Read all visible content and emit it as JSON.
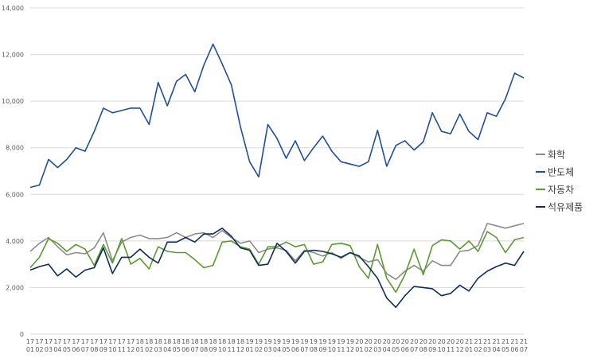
{
  "chart_data": {
    "type": "line",
    "title": "",
    "xlabel": "",
    "ylabel": "",
    "ylim": [
      0,
      14000
    ],
    "yticks": [
      0,
      2000,
      4000,
      6000,
      8000,
      10000,
      12000,
      14000
    ],
    "ytick_labels": [
      "0",
      "2,000",
      "4,000",
      "6,000",
      "8,000",
      "10,000",
      "12,000",
      "14,000"
    ],
    "grid": "horizontal",
    "legend_position": "right",
    "categories": [
      [
        "17",
        "01"
      ],
      [
        "17",
        "02"
      ],
      [
        "17",
        "03"
      ],
      [
        "17",
        "04"
      ],
      [
        "17",
        "05"
      ],
      [
        "17",
        "06"
      ],
      [
        "17",
        "07"
      ],
      [
        "17",
        "08"
      ],
      [
        "17",
        "09"
      ],
      [
        "17",
        "10"
      ],
      [
        "17",
        "11"
      ],
      [
        "17",
        "12"
      ],
      [
        "18",
        "01"
      ],
      [
        "18",
        "02"
      ],
      [
        "18",
        "03"
      ],
      [
        "18",
        "04"
      ],
      [
        "18",
        "05"
      ],
      [
        "18",
        "06"
      ],
      [
        "18",
        "07"
      ],
      [
        "18",
        "08"
      ],
      [
        "18",
        "09"
      ],
      [
        "18",
        "10"
      ],
      [
        "18",
        "11"
      ],
      [
        "18",
        "12"
      ],
      [
        "19",
        "01"
      ],
      [
        "19",
        "02"
      ],
      [
        "19",
        "03"
      ],
      [
        "19",
        "04"
      ],
      [
        "19",
        "05"
      ],
      [
        "19",
        "06"
      ],
      [
        "19",
        "07"
      ],
      [
        "19",
        "08"
      ],
      [
        "19",
        "09"
      ],
      [
        "19",
        "10"
      ],
      [
        "19",
        "11"
      ],
      [
        "19",
        "12"
      ],
      [
        "20",
        "01"
      ],
      [
        "20",
        "02"
      ],
      [
        "20",
        "03"
      ],
      [
        "20",
        "04"
      ],
      [
        "20",
        "05"
      ],
      [
        "20",
        "06"
      ],
      [
        "20",
        "07"
      ],
      [
        "20",
        "08"
      ],
      [
        "20",
        "09"
      ],
      [
        "20",
        "10"
      ],
      [
        "20",
        "11"
      ],
      [
        "20",
        "12"
      ],
      [
        "21",
        "01"
      ],
      [
        "21",
        "02"
      ],
      [
        "21",
        "03"
      ],
      [
        "21",
        "04"
      ],
      [
        "21",
        "05"
      ],
      [
        "21",
        "06"
      ],
      [
        "21",
        "07"
      ]
    ],
    "series": [
      {
        "name": "화학",
        "color": "#8c8c8c",
        "values": [
          3550,
          3900,
          4150,
          3750,
          3400,
          3500,
          3450,
          3700,
          4350,
          3150,
          3950,
          4150,
          4250,
          4100,
          4100,
          4150,
          4350,
          4150,
          4300,
          4350,
          4150,
          4450,
          4150,
          3900,
          4000,
          3500,
          3650,
          3700,
          3600,
          3150,
          3600,
          3500,
          3350,
          3500,
          3250,
          3500,
          3300,
          3100,
          3200,
          2600,
          2350,
          2700,
          2950,
          2700,
          3150,
          2950,
          2950,
          3550,
          3600,
          3800,
          4750,
          4650,
          4550,
          4650,
          4750
        ]
      },
      {
        "name": "반도체",
        "color": "#1f4e9c",
        "values": [
          6300,
          6400,
          7500,
          7150,
          7500,
          8000,
          7850,
          8700,
          9700,
          9500,
          9600,
          9700,
          9700,
          9000,
          10800,
          9800,
          10850,
          11150,
          10400,
          11550,
          12450,
          11600,
          10700,
          8900,
          7400,
          6750,
          9000,
          8400,
          7550,
          8300,
          7450,
          8000,
          8500,
          7850,
          7400,
          7300,
          7200,
          7400,
          8750,
          7200,
          8100,
          8300,
          7900,
          8250,
          9500,
          8700,
          8600,
          9450,
          8700,
          8350,
          9500,
          9350,
          10100,
          11200,
          11000
        ]
      },
      {
        "name": "자동차",
        "color": "#5a9a2e",
        "values": [
          2850,
          3300,
          4100,
          3900,
          3550,
          3850,
          3650,
          2950,
          3850,
          3050,
          4100,
          3000,
          3250,
          2800,
          3750,
          3550,
          3500,
          3500,
          3200,
          2850,
          2950,
          3950,
          4000,
          3750,
          3650,
          3000,
          3750,
          3750,
          3950,
          3750,
          3850,
          3000,
          3100,
          3850,
          3900,
          3800,
          2900,
          2400,
          3850,
          2400,
          1800,
          2550,
          3650,
          2550,
          3800,
          4050,
          4000,
          3650,
          4000,
          3550,
          4400,
          4150,
          3500,
          4050,
          4150
        ]
      },
      {
        "name": "석유제품",
        "color": "#0b2d5b",
        "values": [
          2750,
          2900,
          3000,
          2500,
          2800,
          2450,
          2750,
          2850,
          3700,
          2600,
          3300,
          3300,
          3650,
          3300,
          3050,
          3950,
          3950,
          4150,
          3950,
          4300,
          4300,
          4550,
          4200,
          3700,
          3600,
          2950,
          3000,
          3900,
          3550,
          3050,
          3550,
          3600,
          3550,
          3450,
          3300,
          3500,
          3350,
          2900,
          2400,
          1550,
          1150,
          1650,
          2050,
          2000,
          1950,
          1650,
          1750,
          2100,
          1850,
          2400,
          2700,
          2900,
          3050,
          2950,
          3550
        ]
      }
    ]
  }
}
